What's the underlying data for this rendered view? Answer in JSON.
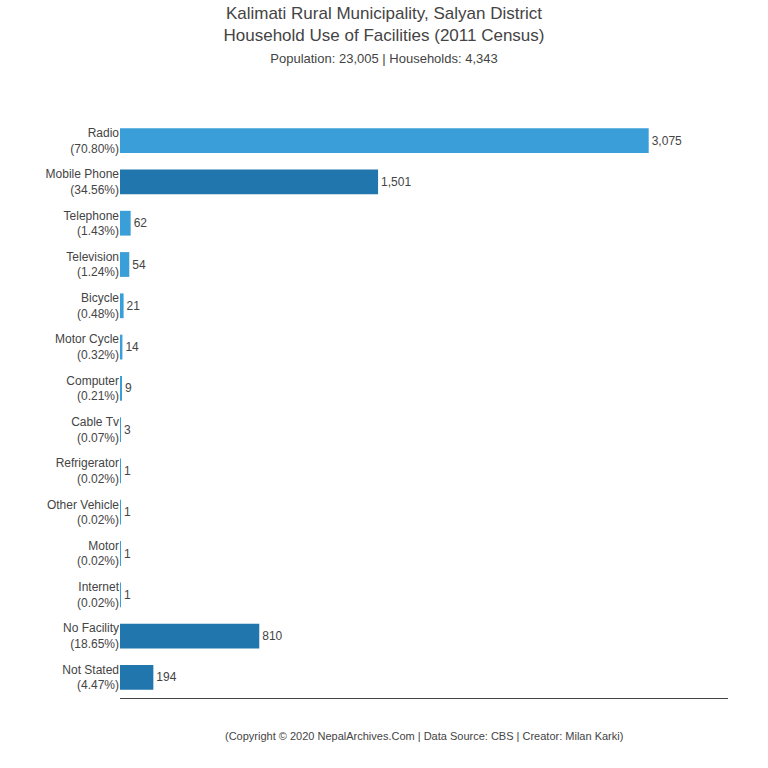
{
  "chart_data": {
    "type": "bar",
    "orientation": "horizontal",
    "title": "Kalimati Rural Municipality, Salyan District\nHousehold Use of Facilities (2011 Census)",
    "subtitle": "Population: 23,005 | Households: 4,343",
    "annotations": [
      "(Copyright © 2020 NepalArchives.Com | Data Source: CBS | Creator: Milan Karki)"
    ],
    "categories": [
      "Radio\n(70.80%)",
      "Mobile Phone\n(34.56%)",
      "Telephone\n(1.43%)",
      "Television\n(1.24%)",
      "Bicycle\n(0.48%)",
      "Motor Cycle\n(0.32%)",
      "Computer\n(0.21%)",
      "Cable Tv\n(0.07%)",
      "Refrigerator\n(0.02%)",
      "Other Vehicle\n(0.02%)",
      "Motor\n(0.02%)",
      "Internet\n(0.02%)",
      "No Facility\n(18.65%)",
      "Not Stated\n(4.47%)"
    ],
    "values": [
      3075,
      1501,
      62,
      54,
      21,
      14,
      9,
      3,
      1,
      1,
      1,
      1,
      810,
      194
    ],
    "value_labels": [
      "3,075",
      "1,501",
      "62",
      "54",
      "21",
      "14",
      "9",
      "3",
      "1",
      "1",
      "1",
      "1",
      "810",
      "194"
    ],
    "colors": [
      "#3A9ED8",
      "#2176AE",
      "#3A9ED8",
      "#3A9ED8",
      "#3A9ED8",
      "#3A9ED8",
      "#3A9ED8",
      "#3A9ED8",
      "#3A9ED8",
      "#3A9ED8",
      "#3A9ED8",
      "#3A9ED8",
      "#2176AE",
      "#2176AE"
    ],
    "xlim": [
      0,
      3536.25
    ],
    "xticks": [],
    "data_labels": true,
    "tick_labels": "y",
    "grid": false
  }
}
